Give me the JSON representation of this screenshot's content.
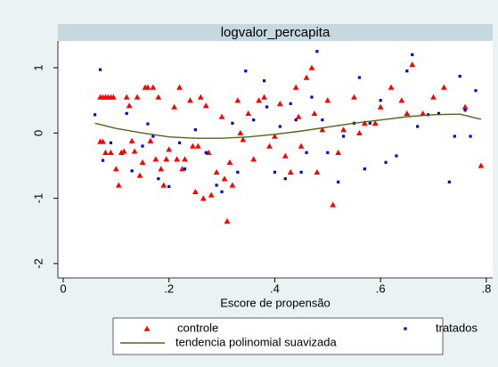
{
  "chart_data": {
    "type": "scatter",
    "title": "logvalor_percapita",
    "x_label": "Escore de propensão",
    "xlim": [
      -0.01,
      0.812
    ],
    "ylim": [
      -2.22,
      1.41
    ],
    "xticks": [
      0,
      {
        "value": 0.2,
        "label": ".2"
      },
      {
        "value": 0.4,
        "label": ".4"
      },
      {
        "value": 0.6,
        "label": ".6"
      },
      {
        "value": 0.8,
        "label": ".8"
      }
    ],
    "yticks": [
      1,
      0,
      -1,
      -2
    ],
    "grid": false,
    "legend": "bottom",
    "series": [
      {
        "name": "controle",
        "color": "#ff0000",
        "marker": "triangle",
        "x": [
          0.07,
          0.075,
          0.08,
          0.085,
          0.09,
          0.095,
          0.07,
          0.075,
          0.08,
          0.09,
          0.1,
          0.105,
          0.11,
          0.115,
          0.12,
          0.125,
          0.13,
          0.135,
          0.14,
          0.145,
          0.15,
          0.155,
          0.16,
          0.165,
          0.17,
          0.175,
          0.18,
          0.185,
          0.19,
          0.195,
          0.2,
          0.21,
          0.215,
          0.22,
          0.225,
          0.23,
          0.24,
          0.245,
          0.25,
          0.255,
          0.26,
          0.265,
          0.27,
          0.275,
          0.28,
          0.29,
          0.3,
          0.305,
          0.31,
          0.315,
          0.32,
          0.33,
          0.335,
          0.34,
          0.35,
          0.36,
          0.37,
          0.38,
          0.39,
          0.4,
          0.41,
          0.42,
          0.43,
          0.44,
          0.445,
          0.45,
          0.46,
          0.47,
          0.475,
          0.48,
          0.49,
          0.5,
          0.51,
          0.52,
          0.53,
          0.55,
          0.56,
          0.57,
          0.59,
          0.6,
          0.62,
          0.64,
          0.65,
          0.66,
          0.68,
          0.7,
          0.72,
          0.76,
          0.79
        ],
        "values": [
          0.55,
          0.55,
          0.55,
          0.55,
          0.55,
          0.55,
          -0.13,
          -0.13,
          -0.3,
          -0.3,
          -0.55,
          -0.8,
          -0.3,
          -0.28,
          0.55,
          0.42,
          -0.12,
          -0.28,
          0.55,
          -0.65,
          -0.45,
          0.7,
          0.7,
          -0.12,
          0.7,
          -0.4,
          0.55,
          -0.55,
          -0.8,
          -0.4,
          -0.25,
          0.4,
          -0.4,
          0.7,
          -0.55,
          -0.4,
          0.5,
          -0.2,
          -0.9,
          -0.2,
          0.55,
          -1,
          0.42,
          -0.3,
          -0.95,
          -0.6,
          0.25,
          -0.7,
          -1.35,
          -0.45,
          -0.8,
          0.5,
          0,
          -0.1,
          0.3,
          -0.4,
          0.5,
          0.55,
          -0.2,
          -0.05,
          0.45,
          -0.35,
          -0.6,
          0.7,
          0.25,
          -0.2,
          0.85,
          1,
          0.3,
          -0.6,
          0.05,
          0.5,
          -1.1,
          -0.3,
          0.05,
          0.55,
          0,
          0.15,
          0.15,
          0.4,
          0.7,
          0.5,
          0.3,
          1.05,
          0.3,
          0.55,
          0.7,
          0.4,
          -0.5
        ]
      },
      {
        "name": "tratados",
        "color": "#0000cc",
        "marker": "square",
        "x": [
          0.07,
          0.06,
          0.075,
          0.09,
          0.12,
          0.13,
          0.15,
          0.16,
          0.17,
          0.18,
          0.2,
          0.22,
          0.23,
          0.25,
          0.27,
          0.29,
          0.3,
          0.32,
          0.33,
          0.345,
          0.36,
          0.38,
          0.385,
          0.4,
          0.41,
          0.42,
          0.43,
          0.44,
          0.45,
          0.46,
          0.47,
          0.48,
          0.49,
          0.5,
          0.52,
          0.53,
          0.55,
          0.56,
          0.57,
          0.58,
          0.6,
          0.61,
          0.63,
          0.65,
          0.66,
          0.67,
          0.69,
          0.71,
          0.73,
          0.74,
          0.75,
          0.76,
          0.77,
          0.78
        ],
        "values": [
          0.97,
          0.28,
          -0.42,
          -0.15,
          0.3,
          -0.58,
          -0.2,
          0.14,
          -0.05,
          -0.7,
          -0.82,
          -0.15,
          -0.55,
          0.05,
          -0.3,
          -0.8,
          -0.9,
          0.15,
          -0.6,
          0.95,
          0.2,
          0.8,
          0.4,
          -0.6,
          0.1,
          -0.7,
          0.45,
          0.2,
          -0.6,
          -0.3,
          0.55,
          1.25,
          0.2,
          -0.3,
          -0.75,
          -0.05,
          0.15,
          0.85,
          -0.55,
          0.15,
          0.5,
          -0.45,
          -0.35,
          0.95,
          1.2,
          0.1,
          0.28,
          0.3,
          -0.75,
          -0.05,
          0.87,
          0.35,
          -0.05,
          0.65
        ]
      },
      {
        "name": "tendencia polinomial suavizada",
        "color": "#4a6a1a",
        "marker": "line",
        "x": [
          0.06,
          0.1,
          0.15,
          0.2,
          0.25,
          0.3,
          0.35,
          0.4,
          0.45,
          0.5,
          0.55,
          0.6,
          0.65,
          0.7,
          0.75,
          0.79
        ],
        "values": [
          0.15,
          0.07,
          0,
          -0.06,
          -0.08,
          -0.08,
          -0.06,
          -0.02,
          0.03,
          0.09,
          0.15,
          0.2,
          0.25,
          0.28,
          0.29,
          0.21
        ]
      }
    ]
  }
}
